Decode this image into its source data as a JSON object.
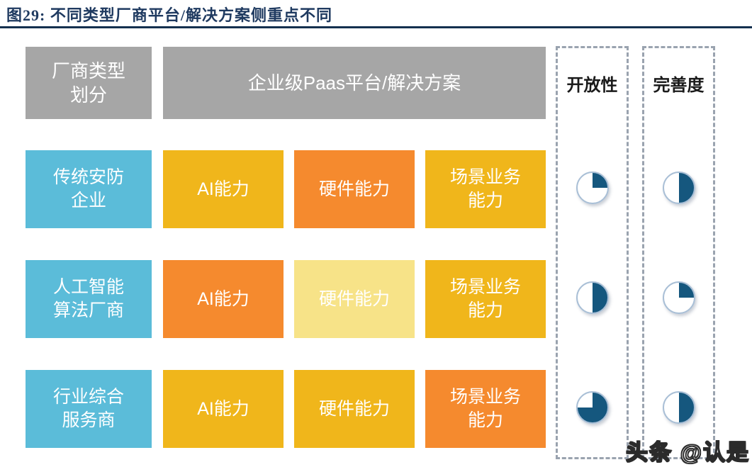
{
  "title": "图29:  不同类型厂商平台/解决方案侧重点不同",
  "colors": {
    "title_navy": "#1F3A60",
    "rule_navy": "#14304F",
    "header_gray": "#A6A6A6",
    "vendor_blue": "#5BBCD9",
    "gold": "#F0B61B",
    "orange": "#F58A2E",
    "pale_yellow": "#F7E388",
    "pie_fill": "#15577E",
    "pie_ring": "#A9BFD6",
    "dashed_border": "#9AA3AF"
  },
  "header": {
    "vendor_type": "厂商类型\n划分",
    "platform": "企业级Paas平台/解决方案",
    "openness": "开放性",
    "completeness": "完善度"
  },
  "rows": [
    {
      "vendor": "传统安防\n企业",
      "capabilities": [
        {
          "label": "AI能力",
          "color": "#F0B61B",
          "emphasis": "medium"
        },
        {
          "label": "硬件能力",
          "color": "#F58A2E",
          "emphasis": "high"
        },
        {
          "label": "场景业务\n能力",
          "color": "#F0B61B",
          "emphasis": "medium"
        }
      ],
      "openness_pct": 25,
      "completeness_pct": 50
    },
    {
      "vendor": "人工智能\n算法厂商",
      "capabilities": [
        {
          "label": "AI能力",
          "color": "#F58A2E",
          "emphasis": "high"
        },
        {
          "label": "硬件能力",
          "color": "#F7E388",
          "emphasis": "low"
        },
        {
          "label": "场景业务\n能力",
          "color": "#F0B61B",
          "emphasis": "medium"
        }
      ],
      "openness_pct": 50,
      "completeness_pct": 25
    },
    {
      "vendor": "行业综合\n服务商",
      "capabilities": [
        {
          "label": "AI能力",
          "color": "#F0B61B",
          "emphasis": "medium"
        },
        {
          "label": "硬件能力",
          "color": "#F0B61B",
          "emphasis": "medium"
        },
        {
          "label": "场景业务\n能力",
          "color": "#F58A2E",
          "emphasis": "high"
        }
      ],
      "openness_pct": 75,
      "completeness_pct": 50
    }
  ],
  "watermark": "头条 @认是"
}
